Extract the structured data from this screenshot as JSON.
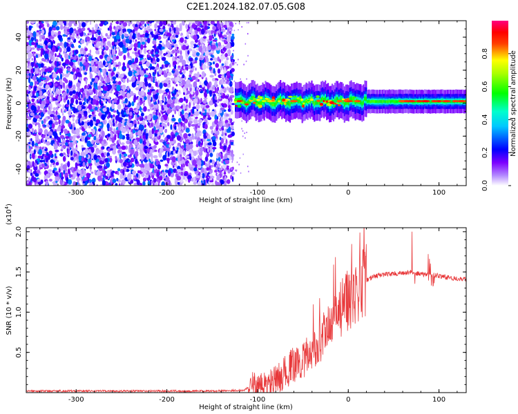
{
  "title": "C2E1.2024.182.07.05.G08",
  "chart_data": [
    {
      "type": "heatmap",
      "xlabel": "Height of straight line (km)",
      "ylabel": "Frequency (Hz)",
      "xlim": [
        -355,
        130
      ],
      "ylim": [
        -50,
        50
      ],
      "xticks": [
        -300,
        -200,
        -100,
        0,
        100
      ],
      "yticks": [
        -40,
        -20,
        0,
        20,
        40
      ],
      "colorbar": {
        "label": "Normalized spectral amplitude",
        "range": [
          0,
          1
        ],
        "ticks": [
          0.0,
          0.2,
          0.4,
          0.6,
          0.8
        ],
        "tick_labels": [
          "0.0",
          "0.2",
          "0.4",
          "0.6",
          "0.8"
        ],
        "colormap": [
          "#ffffff",
          "#7c00ff",
          "#0000ff",
          "#00ffff",
          "#00ff00",
          "#ffff00",
          "#ff0000",
          "#ff0080"
        ]
      },
      "regions": [
        {
          "description_x": [
            -355,
            -130
          ],
          "frequency": [
            -50,
            50
          ],
          "amplitude": "low noise, 0.05-0.4"
        },
        {
          "description_x": [
            -125,
            130
          ],
          "frequency_center": 1,
          "amplitude": "strong band, 0.4-0.9"
        }
      ],
      "grid": false
    },
    {
      "type": "line",
      "xlabel": "Height of straight line (km)",
      "ylabel": "SNR (10 * v/v)",
      "y_multiplier_label": "(x10",
      "y_multiplier_exp": "4",
      "y_multiplier_close": ")",
      "xlim": [
        -355,
        130
      ],
      "ylim": [
        0,
        2.05
      ],
      "xticks": [
        -300,
        -200,
        -100,
        0,
        100
      ],
      "yticks": [
        0.5,
        1.0,
        1.5,
        2.0
      ],
      "ytick_labels": [
        "0.5",
        "1.0",
        "1.5",
        "2.0"
      ],
      "series": [
        {
          "color": "#e8383a",
          "x": [
            -355,
            -300,
            -250,
            -200,
            -150,
            -115,
            -105,
            -100,
            -90,
            -80,
            -70,
            -60,
            -50,
            -40,
            -30,
            -20,
            -10,
            0,
            10,
            20,
            30,
            40,
            50,
            60,
            70,
            80,
            90,
            100,
            110,
            120,
            130
          ],
          "y": [
            0.02,
            0.02,
            0.02,
            0.02,
            0.02,
            0.03,
            0.1,
            0.06,
            0.1,
            0.15,
            0.25,
            0.35,
            0.4,
            0.5,
            0.65,
            0.8,
            1.0,
            1.15,
            1.3,
            1.4,
            1.45,
            1.47,
            1.48,
            1.48,
            1.5,
            1.47,
            1.47,
            1.45,
            1.43,
            1.42,
            1.41
          ]
        }
      ],
      "grid": false
    }
  ]
}
